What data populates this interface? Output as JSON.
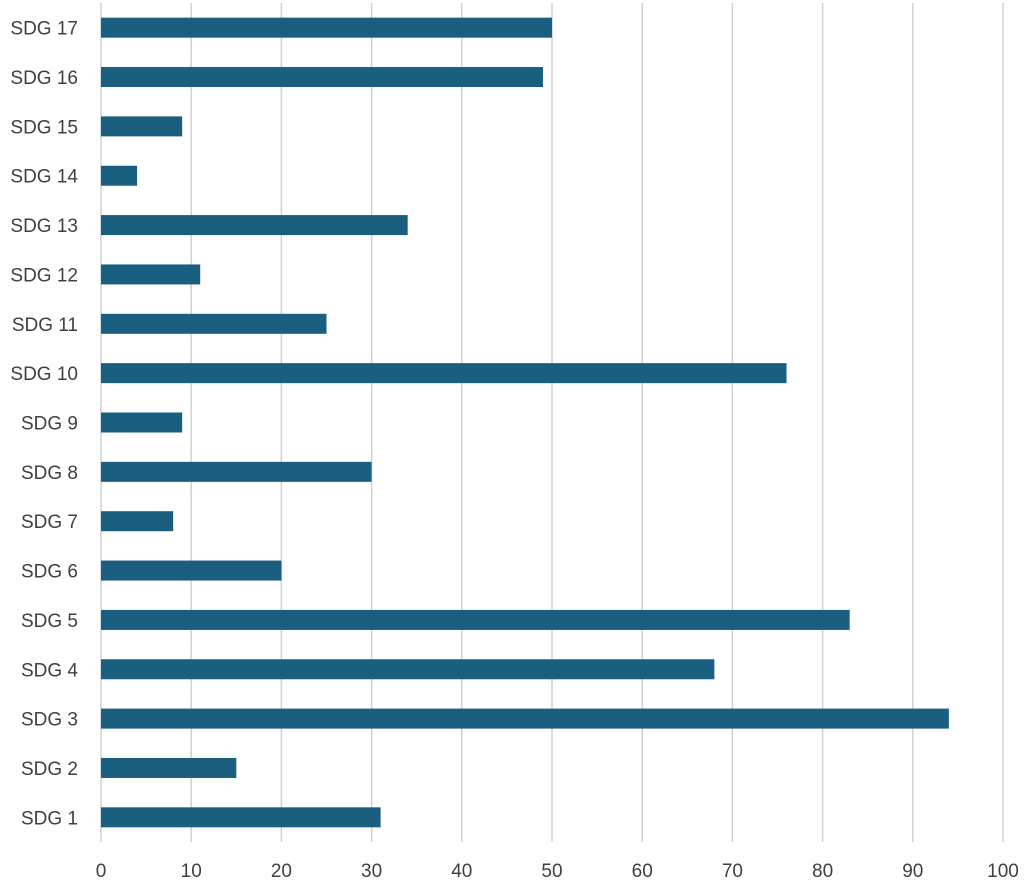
{
  "chart_data": {
    "type": "bar",
    "orientation": "horizontal",
    "title": "",
    "xlabel": "",
    "ylabel": "",
    "categories": [
      "SDG 1",
      "SDG 2",
      "SDG 3",
      "SDG 4",
      "SDG 5",
      "SDG 6",
      "SDG 7",
      "SDG 8",
      "SDG 9",
      "SDG 10",
      "SDG 11",
      "SDG 12",
      "SDG 13",
      "SDG 14",
      "SDG 15",
      "SDG 16",
      "SDG 17"
    ],
    "values": [
      31,
      15,
      94,
      68,
      83,
      20,
      8,
      30,
      9,
      76,
      25,
      11,
      34,
      4,
      9,
      49,
      50
    ],
    "xlim": [
      0,
      100
    ],
    "xticks": [
      0,
      10,
      20,
      30,
      40,
      50,
      60,
      70,
      80,
      90,
      100
    ],
    "grid": true,
    "legend": "none",
    "colors": {
      "bar": "#1a5e80",
      "grid": "#d0d0d0",
      "text": "#404040"
    }
  }
}
